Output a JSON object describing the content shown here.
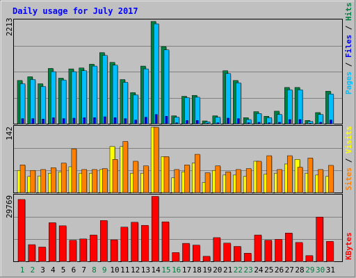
{
  "chart_data": {
    "type": "bar",
    "title": "Daily usage for July 2017",
    "categories": [
      "1",
      "2",
      "3",
      "4",
      "5",
      "6",
      "7",
      "8",
      "9",
      "10",
      "11",
      "12",
      "13",
      "14",
      "15",
      "16",
      "17",
      "18",
      "19",
      "20",
      "21",
      "22",
      "23",
      "24",
      "25",
      "26",
      "27",
      "28",
      "29",
      "30",
      "31"
    ],
    "weekend_days": [
      1,
      2,
      8,
      9,
      15,
      16,
      22,
      23,
      29,
      30
    ],
    "panels": [
      {
        "id": "pages_files_hits",
        "max_label": "2213",
        "ylim": [
          0,
          2213
        ],
        "legend": [
          "Pages",
          "Files",
          "Hits"
        ],
        "series": [
          {
            "name": "Hits",
            "color": "#008040",
            "values": [
              930,
              1010,
              860,
              1190,
              980,
              1180,
              1200,
              1280,
              1530,
              1320,
              950,
              670,
              1240,
              2200,
              1660,
              170,
              590,
              610,
              60,
              170,
              1140,
              930,
              130,
              260,
              160,
              270,
              780,
              780,
              70,
              240,
              700
            ]
          },
          {
            "name": "Files",
            "color": "#00bfff",
            "values": [
              860,
              950,
              800,
              1120,
              940,
              1120,
              1140,
              1240,
              1470,
              1260,
              890,
              620,
              1180,
              2150,
              1590,
              140,
              560,
              570,
              40,
              140,
              1080,
              880,
              90,
              220,
              130,
              200,
              730,
              730,
              50,
              200,
              640
            ]
          },
          {
            "name": "Pages",
            "color": "#0000ff",
            "values": [
              110,
              110,
              100,
              130,
              110,
              120,
              130,
              130,
              150,
              130,
              110,
              80,
              140,
              200,
              160,
              20,
              70,
              70,
              10,
              20,
              120,
              110,
              20,
              30,
              20,
              30,
              90,
              90,
              10,
              30,
              80
            ]
          }
        ]
      },
      {
        "id": "visits_sites",
        "max_label": "142",
        "ylim": [
          0,
          142
        ],
        "legend": [
          "Sites",
          "Visits"
        ],
        "series": [
          {
            "name": "Visits",
            "color": "#ff8000",
            "values": [
              60,
              48,
              50,
              54,
              64,
              95,
              50,
              50,
              52,
              72,
              111,
              68,
              58,
              142,
              78,
              50,
              60,
              83,
              43,
              58,
              45,
              50,
              52,
              68,
              80,
              50,
              80,
              55,
              75,
              50,
              59
            ]
          },
          {
            "name": "Sites",
            "color": "#ffff00",
            "values": [
              48,
              35,
              36,
              42,
              45,
              56,
              42,
              42,
              50,
              100,
              100,
              42,
              42,
              142,
              78,
              32,
              45,
              64,
              22,
              48,
              38,
              38,
              35,
              68,
              40,
              42,
              62,
              72,
              42,
              38,
              35
            ]
          }
        ]
      },
      {
        "id": "kbytes",
        "max_label": "29769",
        "ylim": [
          0,
          29769
        ],
        "legend": [
          "KBytes"
        ],
        "series": [
          {
            "name": "KBytes",
            "color": "#ff0000",
            "values": [
              28200,
              7600,
              6500,
              17600,
              16200,
              9600,
              10200,
              12000,
              18600,
              9800,
              15600,
              17800,
              16400,
              29600,
              18000,
              4000,
              8200,
              7400,
              2300,
              10800,
              8300,
              6800,
              3700,
              12000,
              9600,
              10000,
              12900,
              8600,
              2600,
              20200,
              9100
            ]
          }
        ]
      }
    ]
  }
}
